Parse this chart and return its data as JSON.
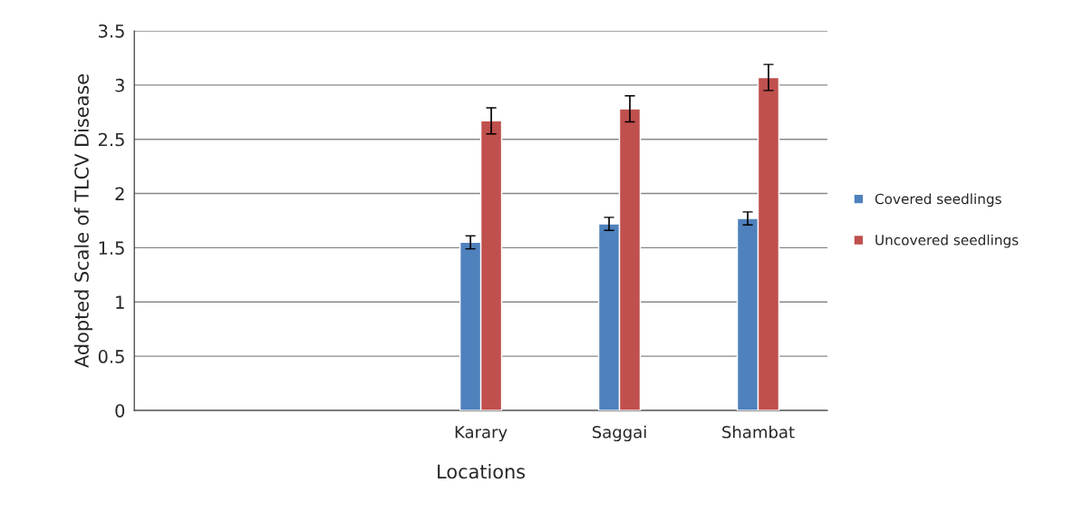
{
  "chart_data": {
    "type": "bar",
    "xlabel": "Locations",
    "ylabel": "Adopted Scale of TLCV Disease",
    "categories": [
      null,
      null,
      "Karary",
      "Saggai",
      "Shambat"
    ],
    "series": [
      {
        "name": "Covered seedlings",
        "color": "#4f81bd",
        "values": [
          null,
          null,
          1.55,
          1.72,
          1.77
        ],
        "errors": [
          null,
          null,
          0.06,
          0.06,
          0.06
        ]
      },
      {
        "name": "Uncovered seedlings",
        "color": "#c0504d",
        "values": [
          null,
          null,
          2.67,
          2.78,
          3.07
        ],
        "errors": [
          null,
          null,
          0.12,
          0.12,
          0.12
        ]
      }
    ],
    "ylim": [
      0,
      3.5
    ],
    "yticks": [
      0,
      0.5,
      1,
      1.5,
      2,
      2.5,
      3,
      3.5
    ],
    "grid": "y",
    "legend": "right"
  }
}
